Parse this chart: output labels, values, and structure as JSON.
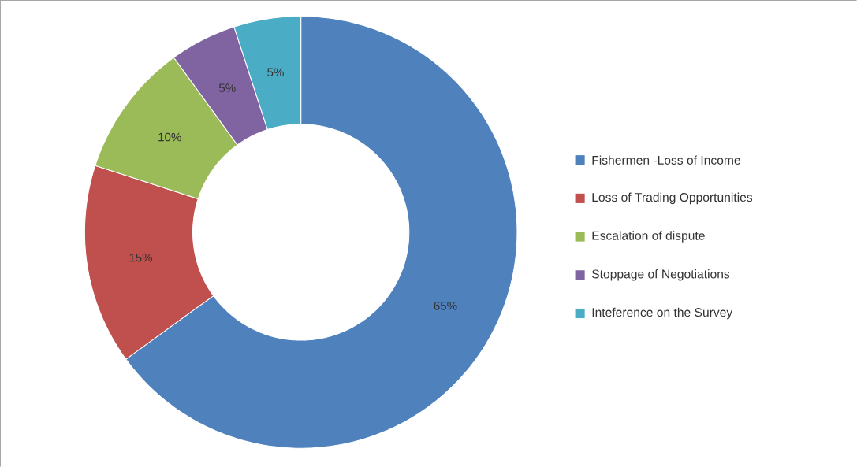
{
  "chart_data": {
    "type": "donut",
    "categories": [
      "Fishermen -Loss of Income",
      "Loss of Trading Opportunities",
      "Escalation of dispute",
      "Stoppage of Negotiations",
      "Inteference on the Survey"
    ],
    "values": [
      65,
      15,
      10,
      5,
      5
    ],
    "value_labels": [
      "65%",
      "15%",
      "10%",
      "5%",
      "5%"
    ],
    "colors": [
      "#4f81bd",
      "#c0504d",
      "#9bbb59",
      "#8064a2",
      "#4bacc6"
    ],
    "legend": "right"
  }
}
